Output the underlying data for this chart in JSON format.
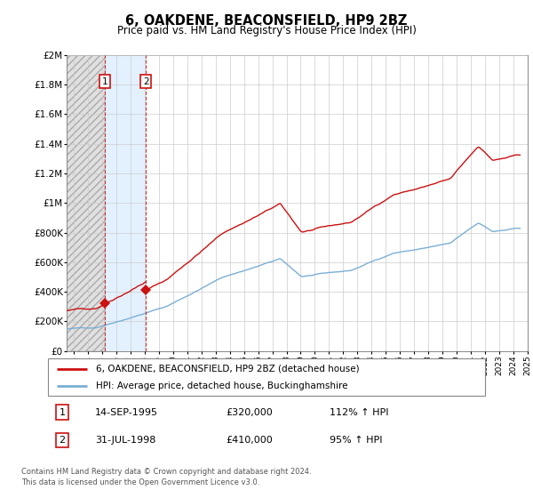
{
  "title": "6, OAKDENE, BEACONSFIELD, HP9 2BZ",
  "subtitle": "Price paid vs. HM Land Registry's House Price Index (HPI)",
  "legend_line1": "6, OAKDENE, BEACONSFIELD, HP9 2BZ (detached house)",
  "legend_line2": "HPI: Average price, detached house, Buckinghamshire",
  "footer": "Contains HM Land Registry data © Crown copyright and database right 2024.\nThis data is licensed under the Open Government Licence v3.0.",
  "sale1_date": "14-SEP-1995",
  "sale1_price": 320000,
  "sale1_hpi": "112% ↑ HPI",
  "sale2_date": "31-JUL-1998",
  "sale2_price": 410000,
  "sale2_hpi": "95% ↑ HPI",
  "hpi_color": "#7bafd4",
  "price_color": "#cc1111",
  "sale1_year": 1995.71,
  "sale2_year": 1998.58,
  "ylim_max": 2000000,
  "yticks": [
    0,
    200000,
    400000,
    600000,
    800000,
    1000000,
    1200000,
    1400000,
    1600000,
    1800000,
    2000000
  ],
  "ytick_labels": [
    "£0",
    "£200K",
    "£400K",
    "£600K",
    "£800K",
    "£1M",
    "£1.2M",
    "£1.4M",
    "£1.6M",
    "£1.8M",
    "£2M"
  ]
}
